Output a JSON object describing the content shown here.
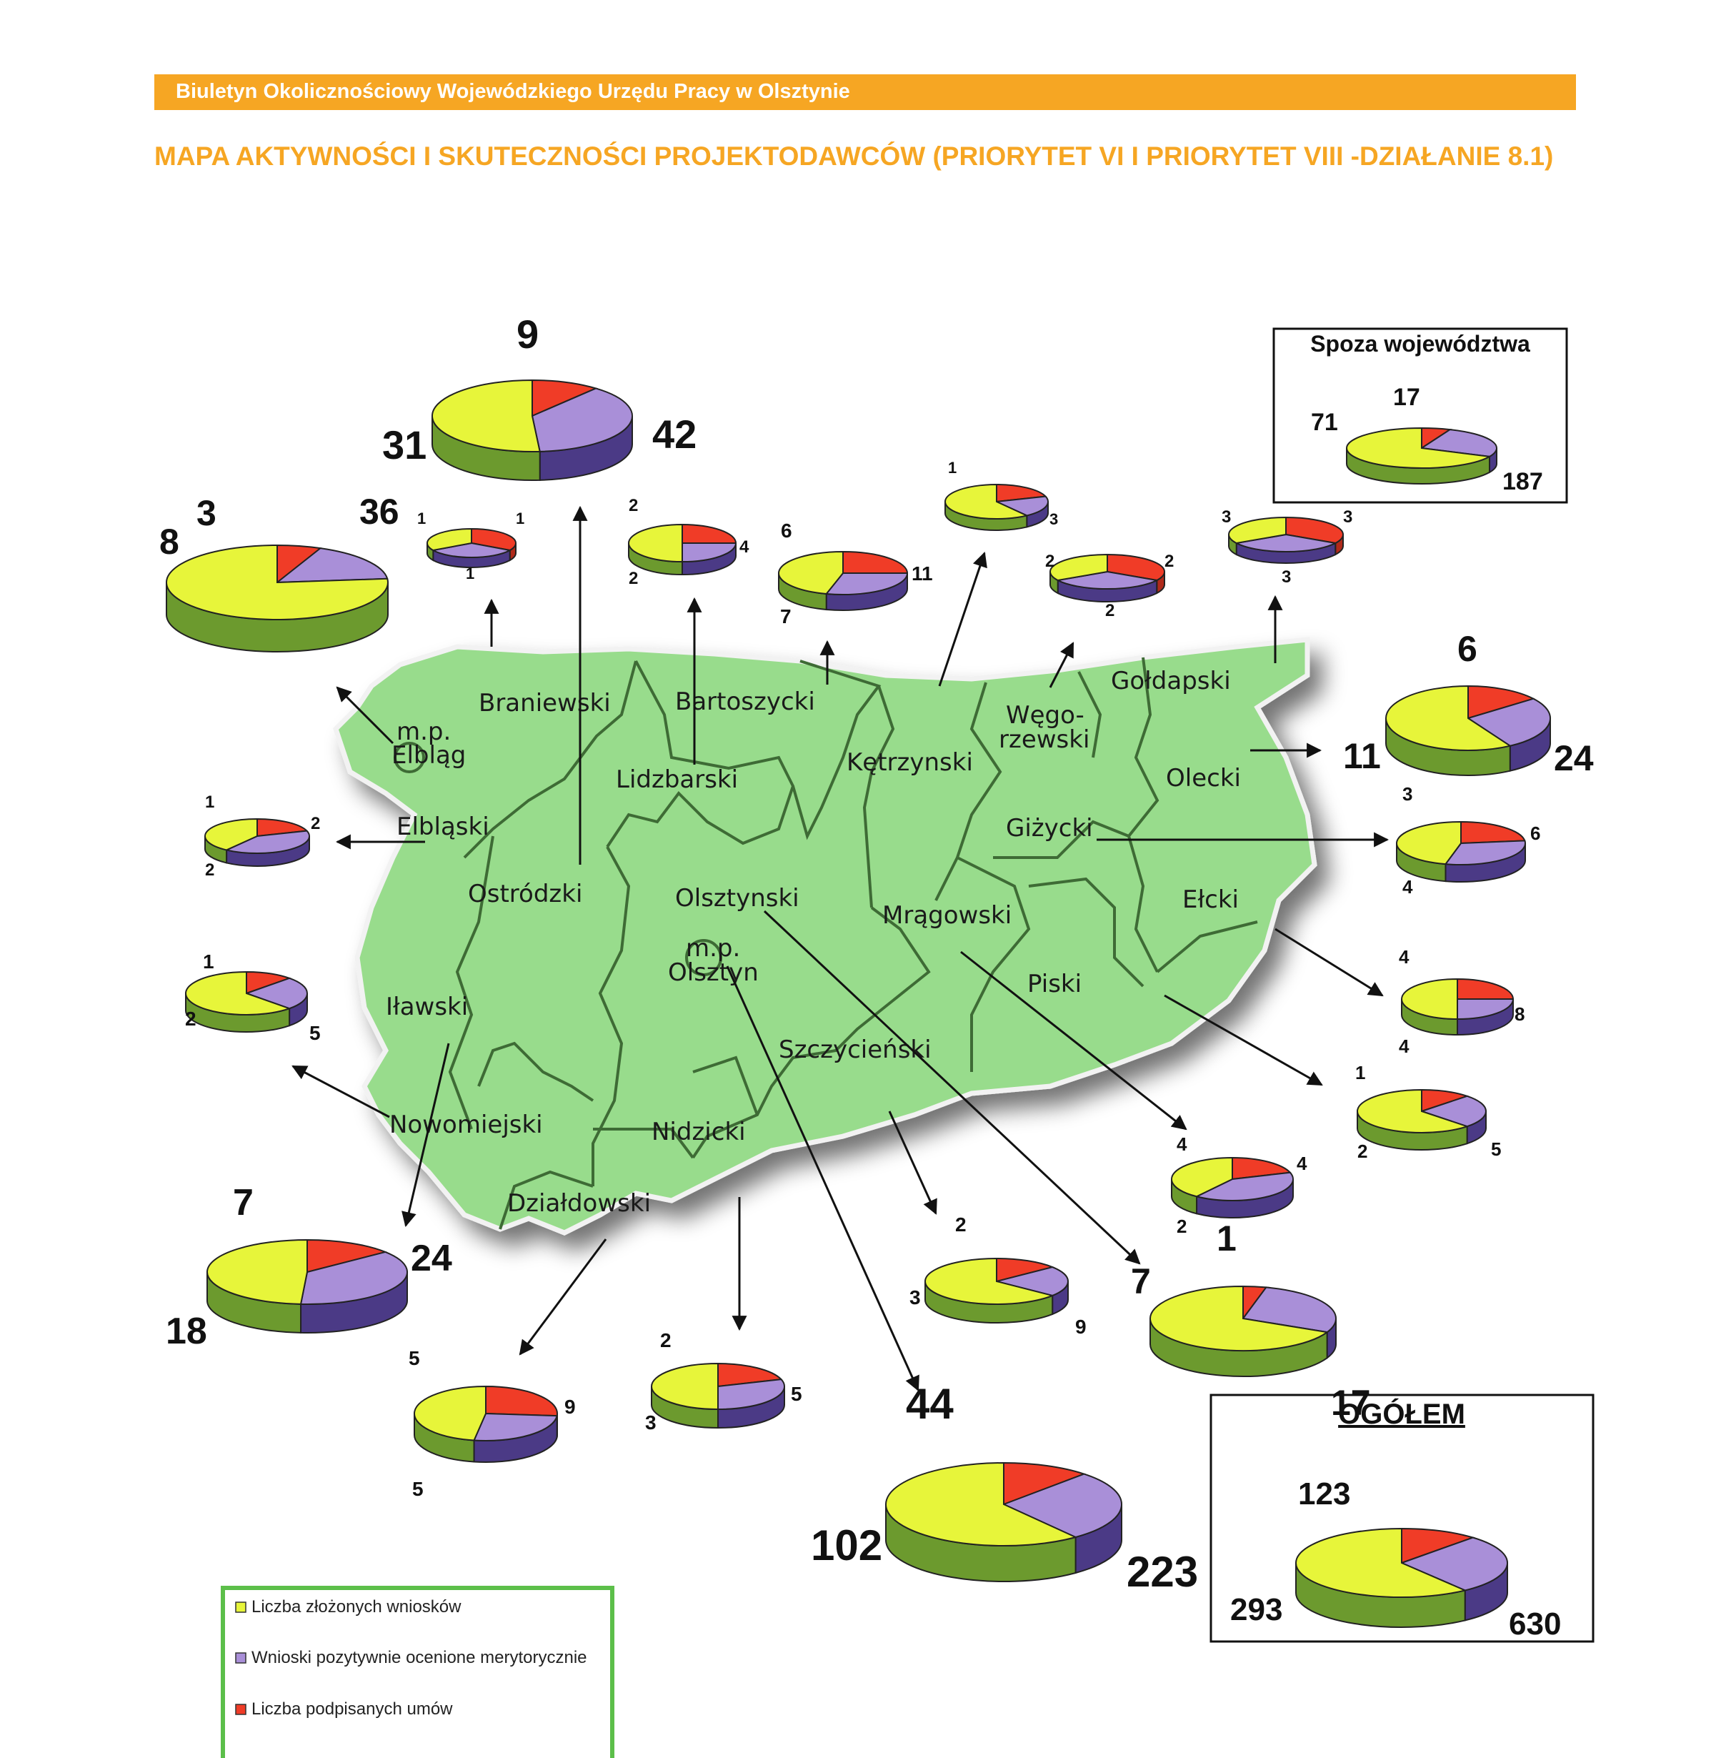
{
  "header": {
    "text": "Biuletyn Okolicznościowy Wojewódzkiego Urzędu Pracy w Olsztynie"
  },
  "title": "MAPA AKTYWNOŚCI I SKUTECZNOŚCI PROJEKTODAWCÓW (PRIORYTET VI I PRIORYTET VIII -DZIAŁANIE 8.1)",
  "counties": [
    "Braniewski",
    "m.p.",
    "Elbląg",
    "Bartoszycki",
    "Lidzbarski",
    "Kętrzynski",
    "Węgo-",
    "rzewski",
    "Gołdapski",
    "Olecki",
    "Elbląski",
    "Giżycki",
    "Ostródzki",
    "Olsztynski",
    "Mrągowski",
    "Ełcki",
    "m.p.",
    "Olsztyn",
    "Iławski",
    "Piski",
    "Szczycieński",
    "Nowomiejski",
    "Nidzicki",
    "Działdowski"
  ],
  "colors": {
    "applications": "#e7f53a",
    "positive": "#a98fd8",
    "contracts": "#f03c27",
    "side": "#6c9a2e",
    "side_positive": "#4b3a86",
    "side_contracts": "#b02a1a",
    "map": "#98dc8c"
  },
  "chart_data": {
    "type": "pie",
    "legend": [
      "Liczba złożonych wniosków",
      "Wnioski pozytywnie ocenione merytorycznie",
      "Liczba podpisanych umów"
    ],
    "pies": [
      {
        "region": "Braniewski",
        "values": [
          1,
          1,
          1
        ]
      },
      {
        "region": "Ostródzki",
        "values": [
          42,
          31,
          9
        ]
      },
      {
        "region": "m.p. Elbląg",
        "values": [
          36,
          8,
          3
        ]
      },
      {
        "region": "Lidzbarski",
        "values": [
          4,
          2,
          2
        ]
      },
      {
        "region": "Bartoszycki",
        "values": [
          11,
          7,
          6
        ]
      },
      {
        "region": "Kętrzynski",
        "values": [
          3,
          1,
          1
        ]
      },
      {
        "region": "Węgorzewski",
        "values": [
          2,
          2,
          2
        ]
      },
      {
        "region": "Gołdapski",
        "values": [
          3,
          3,
          3
        ]
      },
      {
        "region": "Spoza województwa",
        "values": [
          187,
          71,
          17
        ]
      },
      {
        "region": "Olecki",
        "values": [
          24,
          11,
          6
        ]
      },
      {
        "region": "Elbląski",
        "values": [
          2,
          2,
          1
        ]
      },
      {
        "region": "Giżycki",
        "values": [
          6,
          4,
          3
        ]
      },
      {
        "region": "Ełcki",
        "values": [
          8,
          4,
          4
        ]
      },
      {
        "region": "Iławski",
        "values": [
          5,
          2,
          1
        ]
      },
      {
        "region": "Piski",
        "values": [
          5,
          2,
          1
        ]
      },
      {
        "region": "Mrągowski",
        "values": [
          4,
          4,
          2
        ]
      },
      {
        "region": "Nowomiejski",
        "values": [
          24,
          18,
          7
        ]
      },
      {
        "region": "Szczycieński",
        "values": [
          9,
          3,
          2
        ]
      },
      {
        "region": "Olsztynski",
        "values": [
          17,
          7,
          1
        ]
      },
      {
        "region": "Działdowski",
        "values": [
          9,
          5,
          5
        ]
      },
      {
        "region": "Nidzicki",
        "values": [
          5,
          3,
          2
        ]
      },
      {
        "region": "m.p. Olsztyn",
        "values": [
          223,
          102,
          44
        ]
      },
      {
        "region": "OGÓŁEM",
        "values": [
          630,
          293,
          123
        ]
      }
    ],
    "boxes": [
      "Spoza województwa",
      "OGÓŁEM"
    ]
  }
}
